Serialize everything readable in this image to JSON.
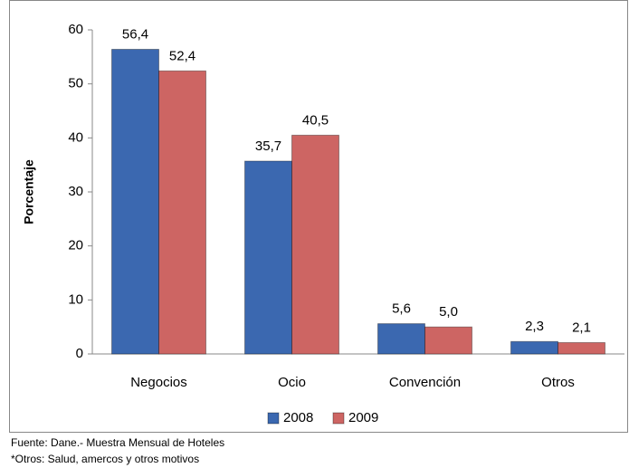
{
  "chart_data": {
    "type": "bar",
    "ylabel": "Porcentaje",
    "categories": [
      "Negocios",
      "Ocio",
      "Convención",
      "Otros"
    ],
    "series": [
      {
        "name": "2008",
        "color": "#3b68b0",
        "values": [
          56.4,
          35.7,
          5.6,
          2.3
        ],
        "value_labels": [
          "56,4",
          "35,7",
          "5,6",
          "2,3"
        ]
      },
      {
        "name": "2009",
        "color": "#cd6563",
        "values": [
          52.4,
          40.5,
          5.0,
          2.1
        ],
        "value_labels": [
          "52,4",
          "40,5",
          "5,0",
          "2,1"
        ]
      }
    ],
    "ylim": [
      0,
      60
    ],
    "yticks": [
      0,
      10,
      20,
      30,
      40,
      50,
      60
    ],
    "grid": false,
    "legend": "bottom",
    "footnotes": [
      "Fuente: Dane.- Muestra Mensual de Hoteles",
      "*Otros: Salud, amercos y otros motivos"
    ]
  }
}
